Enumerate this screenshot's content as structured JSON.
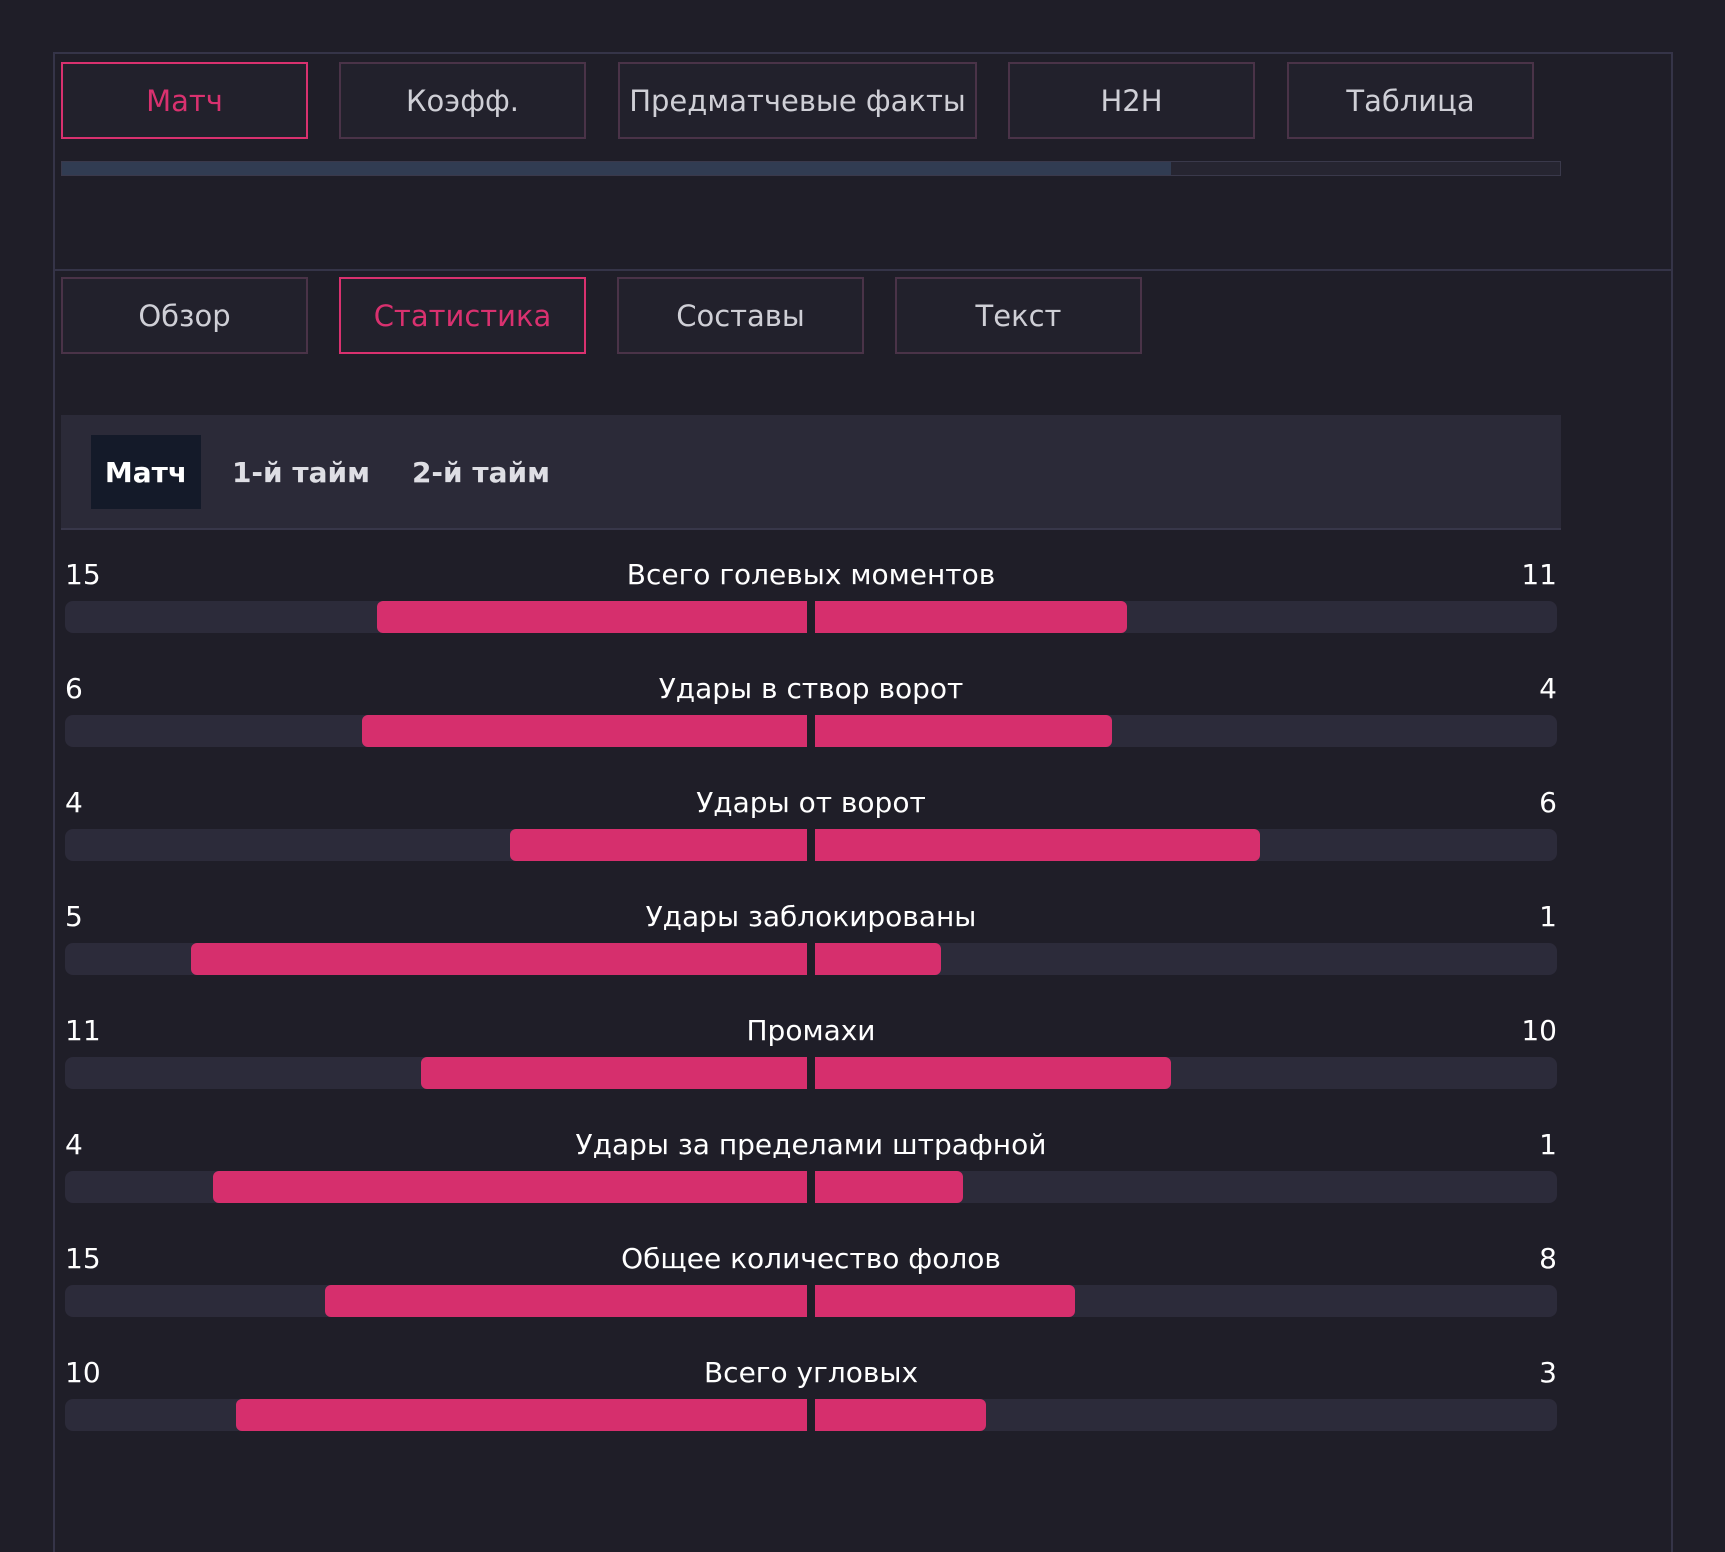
{
  "top_tabs": [
    {
      "label": "Матч",
      "active": true
    },
    {
      "label": "Коэфф.",
      "active": false
    },
    {
      "label": "Предматчевые факты",
      "active": false
    },
    {
      "label": "H2H",
      "active": false
    },
    {
      "label": "Таблица",
      "active": false
    },
    {
      "label": "",
      "active": false
    }
  ],
  "tab_scroll_progress": 0.74,
  "sub_tabs": [
    {
      "label": "Обзор",
      "active": false
    },
    {
      "label": "Статистика",
      "active": true
    },
    {
      "label": "Составы",
      "active": false
    },
    {
      "label": "Текст",
      "active": false
    }
  ],
  "periods": [
    {
      "label": "Матч",
      "active": true
    },
    {
      "label": "1-й тайм",
      "active": false
    },
    {
      "label": "2-й тайм",
      "active": false
    }
  ],
  "stats": [
    {
      "name": "Всего голевых моментов",
      "home": "15",
      "away": "11",
      "home_fill": 0.58,
      "away_fill": 0.42
    },
    {
      "name": "Удары в створ ворот",
      "home": "6",
      "away": "4",
      "home_fill": 0.6,
      "away_fill": 0.4
    },
    {
      "name": "Удары от ворот",
      "home": "4",
      "away": "6",
      "home_fill": 0.4,
      "away_fill": 0.6
    },
    {
      "name": "Удары заблокированы",
      "home": "5",
      "away": "1",
      "home_fill": 0.83,
      "away_fill": 0.17
    },
    {
      "name": "Промахи",
      "home": "11",
      "away": "10",
      "home_fill": 0.52,
      "away_fill": 0.48
    },
    {
      "name": "Удары за пределами штрафной",
      "home": "4",
      "away": "1",
      "home_fill": 0.8,
      "away_fill": 0.2
    },
    {
      "name": "Общее количество фолов",
      "home": "15",
      "away": "8",
      "home_fill": 0.65,
      "away_fill": 0.35
    },
    {
      "name": "Всего угловых",
      "home": "10",
      "away": "3",
      "home_fill": 0.77,
      "away_fill": 0.23
    }
  ],
  "colors": {
    "accent": "#d62f6d",
    "background": "#1f1e28",
    "bar_track": "#2c2b3a",
    "panel": "#2b2a38"
  }
}
